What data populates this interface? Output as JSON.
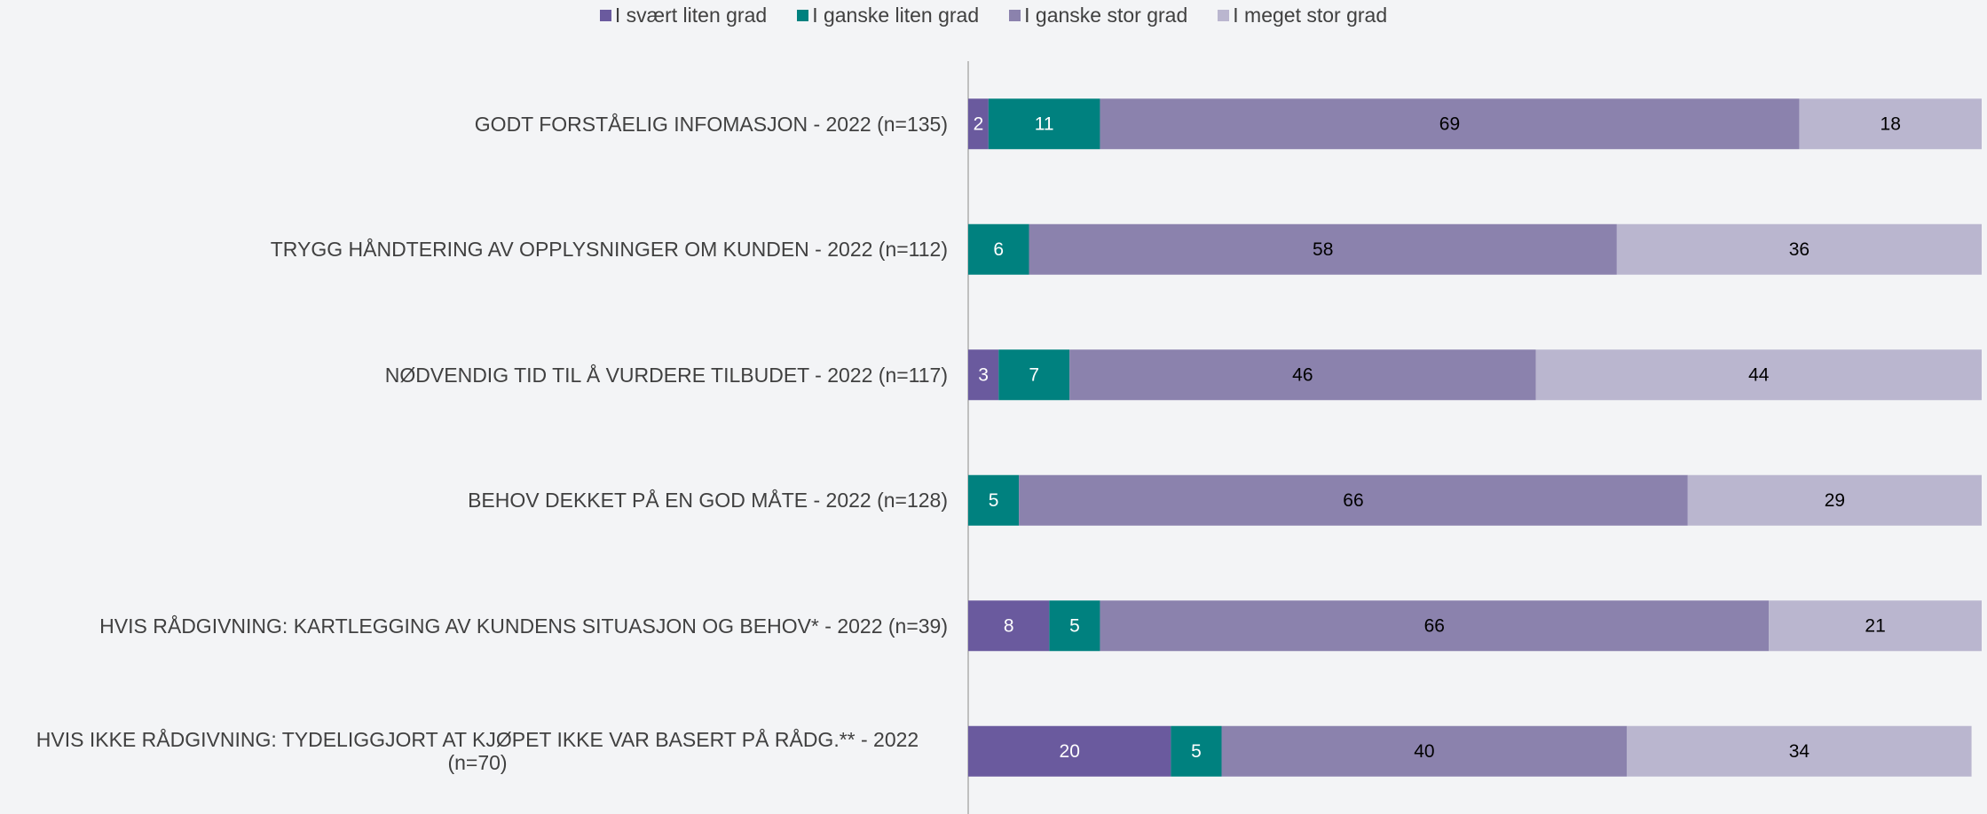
{
  "chart_data": {
    "type": "stacked-bar-horizontal",
    "categories": [
      "GODT FORSTÅELIG INFOMASJON - 2022 (n=135)",
      "TRYGG HÅNDTERING AV OPPLYSNINGER OM KUNDEN - 2022 (n=112)",
      "NØDVENDIG TID TIL Å VURDERE TILBUDET - 2022 (n=117)",
      "BEHOV DEKKET PÅ EN GOD MÅTE - 2022 (n=128)",
      "HVIS RÅDGIVNING: KARTLEGGING AV KUNDENS SITUASJON OG BEHOV* - 2022 (n=39)",
      "HVIS IKKE RÅDGIVNING: TYDELIGGJORT AT KJØPET IKKE VAR BASERT PÅ RÅDG.**  - 2022 (n=70)"
    ],
    "series": [
      {
        "name": "I svært liten grad",
        "color": "#6a5a9e",
        "label_color": "#ffffff",
        "values": [
          2,
          null,
          3,
          null,
          8,
          20
        ]
      },
      {
        "name": "I ganske liten grad",
        "color": "#00817f",
        "label_color": "#ffffff",
        "values": [
          11,
          6,
          7,
          5,
          5,
          5
        ]
      },
      {
        "name": "I ganske stor grad",
        "color": "#8b82ad",
        "label_color": "#000000",
        "values": [
          69,
          58,
          46,
          66,
          66,
          40
        ]
      },
      {
        "name": "I meget stor grad",
        "color": "#bab6cf",
        "label_color": "#000000",
        "values": [
          18,
          36,
          44,
          29,
          21,
          34
        ]
      }
    ],
    "xlim": [
      0,
      100
    ]
  }
}
